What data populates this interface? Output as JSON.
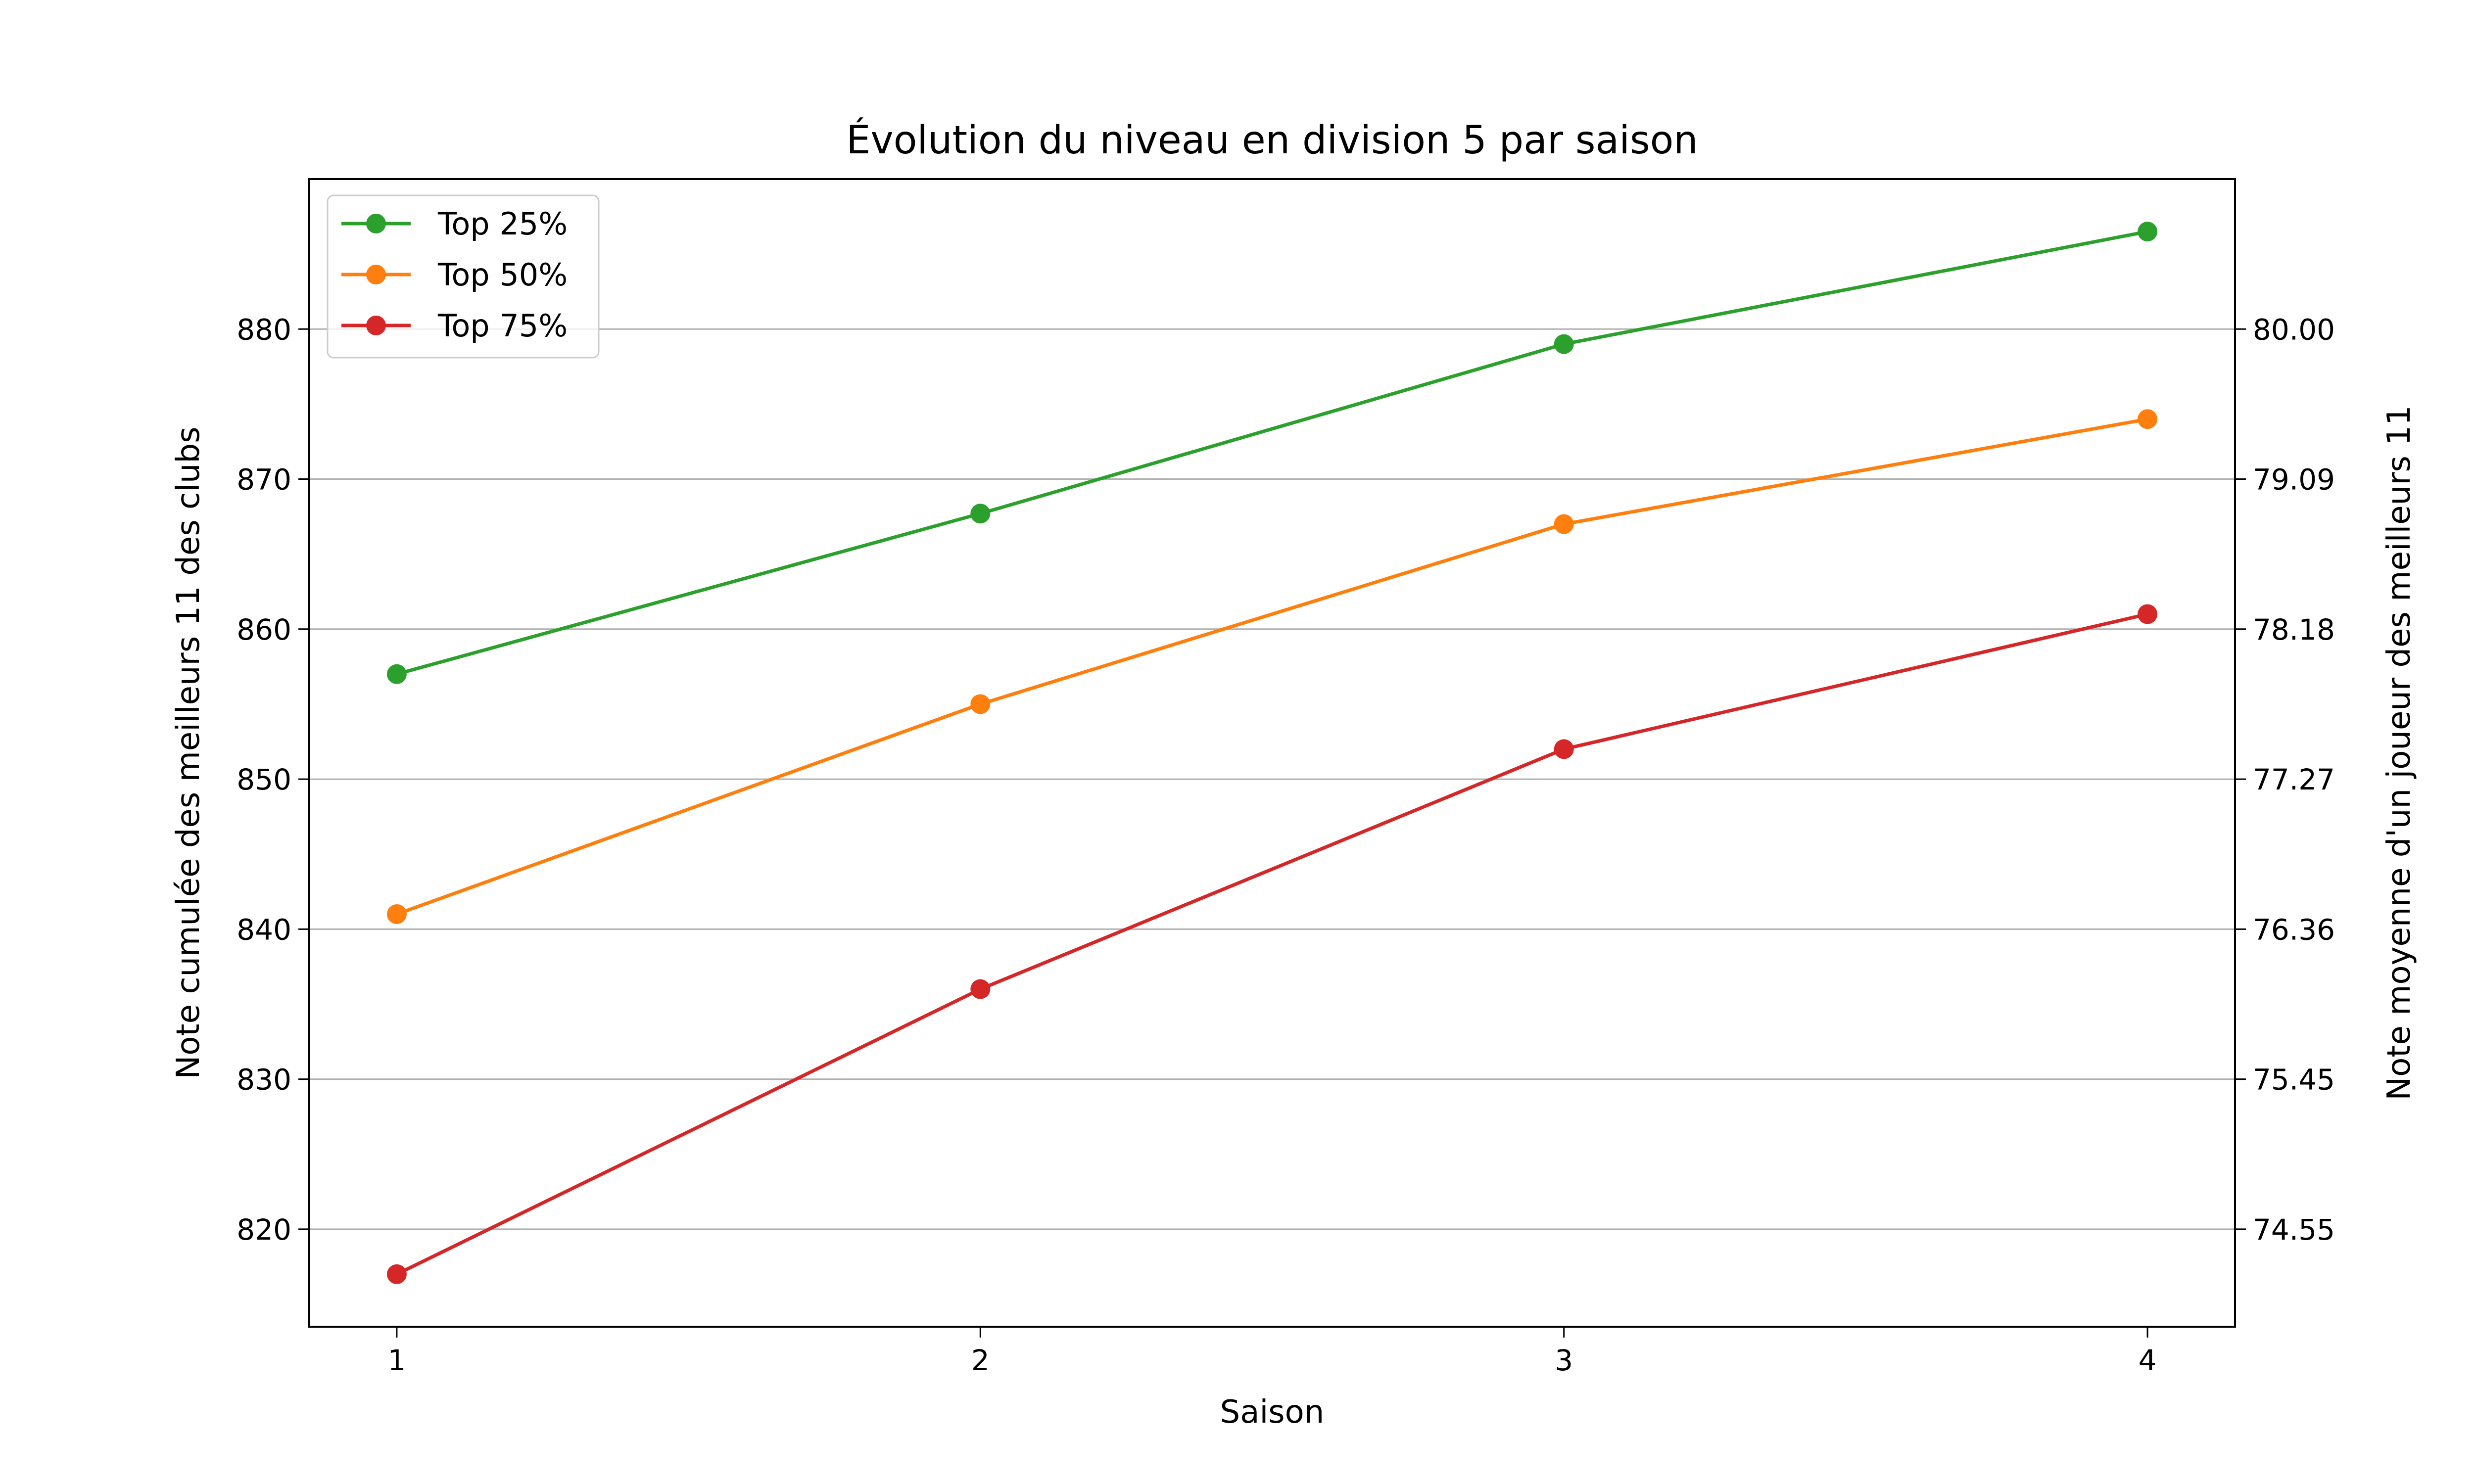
{
  "chart_data": {
    "type": "line",
    "title": "Évolution du niveau en division 5 par saison",
    "xlabel": "Saison",
    "ylabel": "Note cumulée des meilleurs 11 des clubs",
    "ylabel_right": "Note moyenne d'un joueur des meilleurs 11",
    "x": [
      1,
      2,
      3,
      4
    ],
    "x_ticks": [
      "1",
      "2",
      "3",
      "4"
    ],
    "xlim": [
      0.85,
      4.15
    ],
    "ylim": [
      813.5,
      890
    ],
    "y_ticks": [
      "820",
      "830",
      "840",
      "850",
      "860",
      "870",
      "880"
    ],
    "y_right_ticks": [
      "74.55",
      "75.45",
      "76.36",
      "77.27",
      "78.18",
      "79.09",
      "80.00"
    ],
    "grid": "horizontal",
    "legend_position": "top-left",
    "series": [
      {
        "name": "Top 25%",
        "color": "#2ca02c",
        "values": [
          857,
          867.7,
          879,
          886.5
        ]
      },
      {
        "name": "Top 50%",
        "color": "#ff7f0e",
        "values": [
          841,
          855,
          867,
          874
        ]
      },
      {
        "name": "Top 75%",
        "color": "#d62728",
        "values": [
          817,
          836,
          852,
          861
        ]
      }
    ]
  }
}
